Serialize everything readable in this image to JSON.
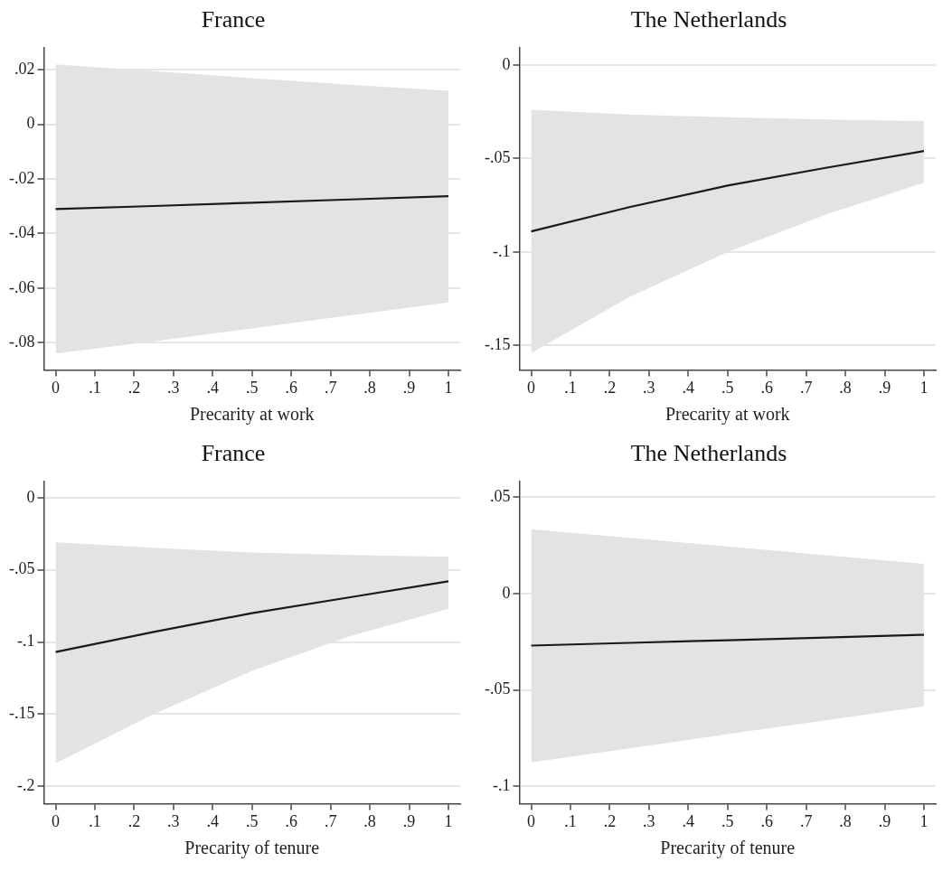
{
  "chart_data": [
    {
      "type": "line",
      "title": "France",
      "xlabel": "Precarity at work",
      "x": [
        0,
        0.25,
        0.5,
        0.75,
        1
      ],
      "series": [
        {
          "color": "#1a1a1a",
          "values": [
            -0.031,
            -0.0299,
            -0.0287,
            -0.0275,
            -0.0263
          ],
          "lower": [
            -0.084,
            -0.0795,
            -0.0748,
            -0.07,
            -0.0653
          ],
          "upper": [
            0.022,
            0.0195,
            0.017,
            0.0146,
            0.0123
          ]
        }
      ],
      "xlim": [
        -0.03,
        1.03
      ],
      "xticks": [
        {
          "value": 0,
          "label": "0"
        },
        {
          "value": 0.1,
          "label": ".1"
        },
        {
          "value": 0.2,
          "label": ".2"
        },
        {
          "value": 0.3,
          "label": ".3"
        },
        {
          "value": 0.4,
          "label": ".4"
        },
        {
          "value": 0.5,
          "label": ".5"
        },
        {
          "value": 0.6,
          "label": ".6"
        },
        {
          "value": 0.7,
          "label": ".7"
        },
        {
          "value": 0.8,
          "label": ".8"
        },
        {
          "value": 0.9,
          "label": ".9"
        },
        {
          "value": 1,
          "label": "1"
        }
      ],
      "ylim": [
        -0.09,
        0.028
      ],
      "yticks": [
        {
          "value": -0.08,
          "label": "-.08"
        },
        {
          "value": -0.06,
          "label": "-.06"
        },
        {
          "value": -0.04,
          "label": "-.04"
        },
        {
          "value": -0.02,
          "label": "-.02"
        },
        {
          "value": 0,
          "label": "0"
        },
        {
          "value": 0.02,
          "label": ".02"
        }
      ],
      "grid": "y",
      "marker": "none"
    },
    {
      "type": "line",
      "title": "The Netherlands",
      "xlabel": "Precarity at work",
      "x": [
        0,
        0.25,
        0.5,
        0.75,
        1
      ],
      "series": [
        {
          "color": "#1a1a1a",
          "values": [
            -0.089,
            -0.076,
            -0.0645,
            -0.055,
            -0.046
          ],
          "lower": [
            -0.154,
            -0.124,
            -0.1,
            -0.08,
            -0.063
          ],
          "upper": [
            -0.024,
            -0.0265,
            -0.028,
            -0.0292,
            -0.03
          ]
        }
      ],
      "xlim": [
        -0.03,
        1.03
      ],
      "xticks": [
        {
          "value": 0,
          "label": "0"
        },
        {
          "value": 0.1,
          "label": ".1"
        },
        {
          "value": 0.2,
          "label": ".2"
        },
        {
          "value": 0.3,
          "label": ".3"
        },
        {
          "value": 0.4,
          "label": ".4"
        },
        {
          "value": 0.5,
          "label": ".5"
        },
        {
          "value": 0.6,
          "label": ".6"
        },
        {
          "value": 0.7,
          "label": ".7"
        },
        {
          "value": 0.8,
          "label": ".8"
        },
        {
          "value": 0.9,
          "label": ".9"
        },
        {
          "value": 1,
          "label": "1"
        }
      ],
      "ylim": [
        -0.163,
        0.009
      ],
      "yticks": [
        {
          "value": -0.15,
          "label": "-.15"
        },
        {
          "value": -0.1,
          "label": "-.1"
        },
        {
          "value": -0.05,
          "label": "-.05"
        },
        {
          "value": 0,
          "label": "0"
        }
      ],
      "grid": "y",
      "marker": "none"
    },
    {
      "type": "line",
      "title": "France",
      "xlabel": "Precarity of tenure",
      "x": [
        0,
        0.25,
        0.5,
        0.75,
        1
      ],
      "series": [
        {
          "color": "#1a1a1a",
          "values": [
            -0.107,
            -0.093,
            -0.08,
            -0.069,
            -0.058
          ],
          "lower": [
            -0.184,
            -0.15,
            -0.12,
            -0.096,
            -0.077
          ],
          "upper": [
            -0.031,
            -0.0348,
            -0.038,
            -0.0398,
            -0.041
          ]
        }
      ],
      "xlim": [
        -0.03,
        1.03
      ],
      "xticks": [
        {
          "value": 0,
          "label": "0"
        },
        {
          "value": 0.1,
          "label": ".1"
        },
        {
          "value": 0.2,
          "label": ".2"
        },
        {
          "value": 0.3,
          "label": ".3"
        },
        {
          "value": 0.4,
          "label": ".4"
        },
        {
          "value": 0.5,
          "label": ".5"
        },
        {
          "value": 0.6,
          "label": ".6"
        },
        {
          "value": 0.7,
          "label": ".7"
        },
        {
          "value": 0.8,
          "label": ".8"
        },
        {
          "value": 0.9,
          "label": ".9"
        },
        {
          "value": 1,
          "label": "1"
        }
      ],
      "ylim": [
        -0.212,
        0.011
      ],
      "yticks": [
        {
          "value": -0.2,
          "label": "-.2"
        },
        {
          "value": -0.15,
          "label": "-.15"
        },
        {
          "value": -0.1,
          "label": "-.1"
        },
        {
          "value": -0.05,
          "label": "-.05"
        },
        {
          "value": 0,
          "label": "0"
        }
      ],
      "grid": "y",
      "marker": "none"
    },
    {
      "type": "line",
      "title": "The Netherlands",
      "xlabel": "Precarity of tenure",
      "x": [
        0,
        0.25,
        0.5,
        0.75,
        1
      ],
      "series": [
        {
          "color": "#1a1a1a",
          "values": [
            -0.027,
            -0.0256,
            -0.0242,
            -0.0228,
            -0.0214
          ],
          "lower": [
            -0.0876,
            -0.0803,
            -0.073,
            -0.0658,
            -0.0585
          ],
          "upper": [
            0.0334,
            0.0289,
            0.0244,
            0.0199,
            0.0154
          ]
        }
      ],
      "xlim": [
        -0.03,
        1.03
      ],
      "xticks": [
        {
          "value": 0,
          "label": "0"
        },
        {
          "value": 0.1,
          "label": ".1"
        },
        {
          "value": 0.2,
          "label": ".2"
        },
        {
          "value": 0.3,
          "label": ".3"
        },
        {
          "value": 0.4,
          "label": ".4"
        },
        {
          "value": 0.5,
          "label": ".5"
        },
        {
          "value": 0.6,
          "label": ".6"
        },
        {
          "value": 0.7,
          "label": ".7"
        },
        {
          "value": 0.8,
          "label": ".8"
        },
        {
          "value": 0.9,
          "label": ".9"
        },
        {
          "value": 1,
          "label": "1"
        }
      ],
      "ylim": [
        -0.109,
        0.058
      ],
      "yticks": [
        {
          "value": -0.1,
          "label": "-.1"
        },
        {
          "value": -0.05,
          "label": "-.05"
        },
        {
          "value": 0,
          "label": "0"
        },
        {
          "value": 0.05,
          "label": ".05"
        }
      ],
      "grid": "y",
      "marker": "none"
    }
  ]
}
